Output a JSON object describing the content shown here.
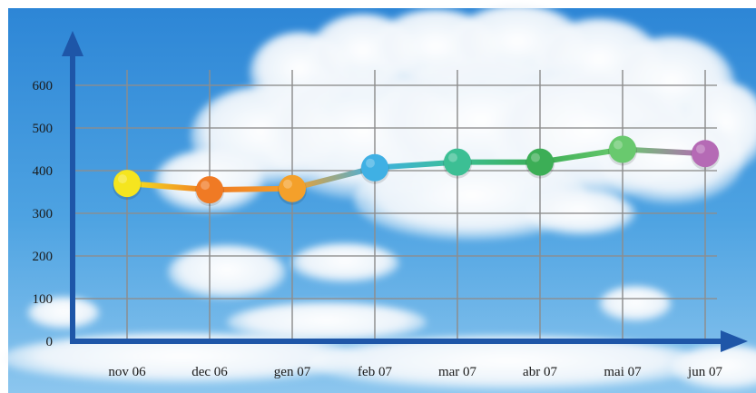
{
  "chart_data": {
    "type": "line",
    "categories": [
      "nov 06",
      "dec 06",
      "gen 07",
      "feb 07",
      "mar 07",
      "abr 07",
      "mai 07",
      "jun 07"
    ],
    "values": [
      370,
      355,
      358,
      407,
      420,
      420,
      450,
      440
    ],
    "point_colors": [
      "#f5e51f",
      "#f07a24",
      "#f4a02a",
      "#3fb0e4",
      "#3cbf94",
      "#3cae56",
      "#69c96e",
      "#b56ab5"
    ],
    "ylim": [
      0,
      650
    ],
    "yticks": [
      0,
      100,
      200,
      300,
      400,
      500,
      600
    ],
    "ytick_labels": [
      "0",
      "100",
      "200",
      "300",
      "400",
      "500",
      "600"
    ],
    "grid": true,
    "legend": "none",
    "axis_color": "#1e56a8",
    "grid_color": "#8d8d8d",
    "background": "sky-with-clouds"
  }
}
